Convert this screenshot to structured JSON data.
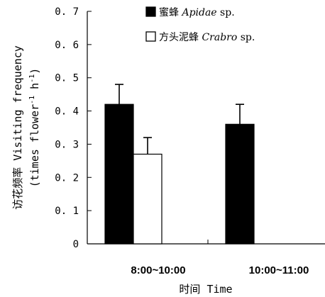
{
  "chart_data": {
    "type": "bar",
    "categories": [
      "8:00~10:00",
      "10:00~11:00"
    ],
    "series": [
      {
        "name": "蜜蜂 Apidae sp.",
        "name_parts": {
          "zh": "蜜蜂",
          "genus": "Apidae",
          "suffix": "sp."
        },
        "values": [
          0.42,
          0.36
        ],
        "errors": [
          0.06,
          0.06
        ],
        "fill": "#000000"
      },
      {
        "name": "方头泥蜂 Crabro sp.",
        "name_parts": {
          "zh": "方头泥蜂",
          "genus": "Crabro",
          "suffix": "sp."
        },
        "values": [
          0.27,
          null
        ],
        "errors": [
          0.05,
          null
        ],
        "fill": "#ffffff"
      }
    ],
    "ylim": [
      0,
      0.7
    ],
    "yticks": [
      "0",
      "0.1",
      "0.2",
      "0.3",
      "0.4",
      "0.5",
      "0.6",
      "0.7"
    ],
    "ylabel_lines": [
      "访花频率 Visiting frequency",
      "(times flower",
      "-1",
      " h",
      "-1",
      ")"
    ],
    "xlabel": "时间 Time",
    "legend_position": "top-right",
    "grid": false
  }
}
